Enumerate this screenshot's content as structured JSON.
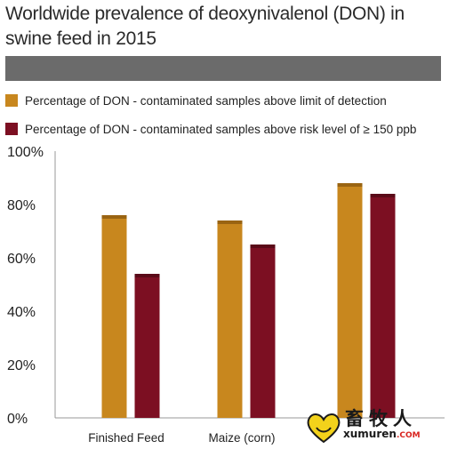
{
  "title": "Worldwide prevalence of deoxynivalenol (DON) in swine feed in 2015",
  "colors": {
    "lod": "#c8871e",
    "risk": "#7c0f22",
    "band": "#6b6b6b"
  },
  "chart_data": {
    "type": "bar",
    "title": "Worldwide prevalence of deoxynivalenol (DON) in swine feed in 2015",
    "categories": [
      "Finished Feed",
      "Maize (corn)",
      ""
    ],
    "series": [
      {
        "name": "Percentage of DON - contaminated samples above limit of detection",
        "values": [
          76,
          74,
          88
        ]
      },
      {
        "name": "Percentage of DON - contaminated samples above risk level of ≥ 150 ppb",
        "values": [
          54,
          65,
          84
        ]
      }
    ],
    "y_ticks": [
      "0%",
      "20%",
      "40%",
      "60%",
      "80%",
      "100%"
    ],
    "ylim": [
      0,
      100
    ],
    "xlabel": "",
    "ylabel": "",
    "legend_position": "top",
    "grid": false
  },
  "watermark": {
    "glyphs": "畜牧人",
    "site": "xumuren",
    "tld": ".COM"
  }
}
